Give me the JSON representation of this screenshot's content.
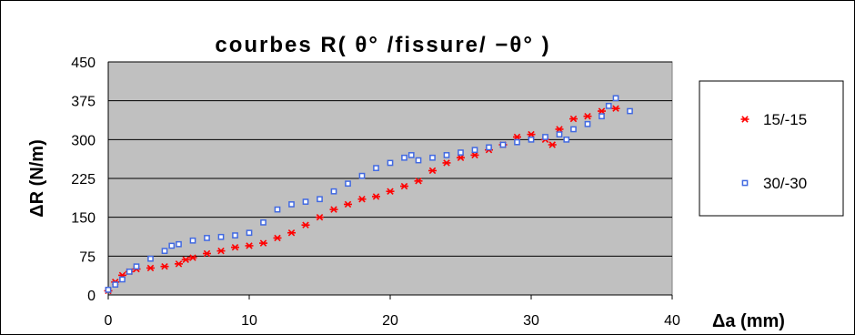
{
  "chart_data": {
    "type": "scatter",
    "title": "courbes R( θ° /fissure/ −θ° )",
    "xlabel": "Δa (mm)",
    "ylabel": "ΔR (N/m)",
    "xlim": [
      0,
      40
    ],
    "ylim": [
      0,
      450
    ],
    "xticks": [
      "0",
      "10",
      "20",
      "30",
      "40"
    ],
    "yticks": [
      "0",
      "75",
      "150",
      "225",
      "300",
      "375",
      "450"
    ],
    "grid": "horizontal",
    "plot_background": "#c0c0c0",
    "legend_position": "right",
    "series": [
      {
        "name": "15/-15",
        "marker": "star",
        "color": "#ff0000",
        "points": [
          [
            0.0,
            8
          ],
          [
            0.5,
            25
          ],
          [
            1,
            38
          ],
          [
            1.5,
            45
          ],
          [
            2,
            50
          ],
          [
            3,
            52
          ],
          [
            4,
            55
          ],
          [
            5,
            60
          ],
          [
            5.5,
            68
          ],
          [
            6,
            72
          ],
          [
            7,
            80
          ],
          [
            8,
            85
          ],
          [
            9,
            92
          ],
          [
            10,
            95
          ],
          [
            11,
            100
          ],
          [
            12,
            110
          ],
          [
            13,
            120
          ],
          [
            14,
            135
          ],
          [
            15,
            150
          ],
          [
            16,
            165
          ],
          [
            17,
            175
          ],
          [
            18,
            185
          ],
          [
            19,
            190
          ],
          [
            20,
            200
          ],
          [
            21,
            210
          ],
          [
            22,
            220
          ],
          [
            23,
            240
          ],
          [
            24,
            255
          ],
          [
            25,
            265
          ],
          [
            26,
            270
          ],
          [
            27,
            280
          ],
          [
            28,
            290
          ],
          [
            29,
            305
          ],
          [
            30,
            310
          ],
          [
            31,
            300
          ],
          [
            31.5,
            290
          ],
          [
            32,
            320
          ],
          [
            33,
            340
          ],
          [
            34,
            345
          ],
          [
            35,
            355
          ],
          [
            36,
            360
          ]
        ]
      },
      {
        "name": "30/-30",
        "marker": "square",
        "color": "#4169e1",
        "points": [
          [
            0,
            10
          ],
          [
            0.5,
            20
          ],
          [
            1,
            30
          ],
          [
            1.5,
            45
          ],
          [
            2,
            55
          ],
          [
            3,
            70
          ],
          [
            4,
            85
          ],
          [
            4.5,
            95
          ],
          [
            5,
            98
          ],
          [
            6,
            105
          ],
          [
            7,
            110
          ],
          [
            8,
            112
          ],
          [
            9,
            115
          ],
          [
            10,
            120
          ],
          [
            11,
            140
          ],
          [
            12,
            165
          ],
          [
            13,
            175
          ],
          [
            14,
            180
          ],
          [
            15,
            185
          ],
          [
            16,
            200
          ],
          [
            17,
            215
          ],
          [
            18,
            230
          ],
          [
            19,
            245
          ],
          [
            20,
            255
          ],
          [
            21,
            265
          ],
          [
            21.5,
            270
          ],
          [
            22,
            260
          ],
          [
            23,
            265
          ],
          [
            24,
            270
          ],
          [
            25,
            275
          ],
          [
            26,
            280
          ],
          [
            27,
            285
          ],
          [
            28,
            290
          ],
          [
            29,
            295
          ],
          [
            30,
            300
          ],
          [
            31,
            305
          ],
          [
            32,
            310
          ],
          [
            32.5,
            300
          ],
          [
            33,
            320
          ],
          [
            34,
            330
          ],
          [
            35,
            345
          ],
          [
            35.5,
            365
          ],
          [
            36,
            380
          ],
          [
            37,
            355
          ]
        ]
      }
    ]
  }
}
